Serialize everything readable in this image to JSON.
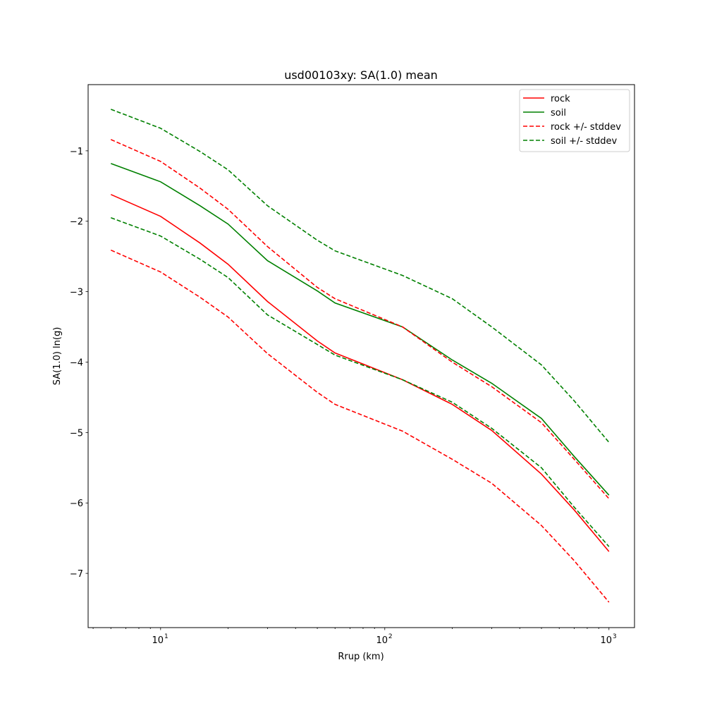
{
  "chart_data": {
    "type": "line",
    "title": "usd00103xy: SA(1.0) mean",
    "xlabel": "Rrup (km)",
    "ylabel": "SA(1.0) ln(g)",
    "xscale": "log",
    "xlim": [
      4.75,
      1300
    ],
    "ylim": [
      -7.77,
      -0.06
    ],
    "xticks": [
      {
        "value": 10,
        "base": "10",
        "exp": "1"
      },
      {
        "value": 100,
        "base": "10",
        "exp": "2"
      },
      {
        "value": 1000,
        "base": "10",
        "exp": "3"
      }
    ],
    "yticks": [
      {
        "value": -1,
        "label": "−1"
      },
      {
        "value": -2,
        "label": "−2"
      },
      {
        "value": -3,
        "label": "−3"
      },
      {
        "value": -4,
        "label": "−4"
      },
      {
        "value": -5,
        "label": "−5"
      },
      {
        "value": -6,
        "label": "−6"
      },
      {
        "value": -7,
        "label": "−7"
      }
    ],
    "grid": false,
    "legend_position": "top-right",
    "x": [
      6,
      10,
      15,
      20,
      30,
      50,
      60,
      120,
      200,
      300,
      500,
      700,
      1000
    ],
    "series": [
      {
        "name": "rock",
        "color": "#ff0000",
        "style": "solid",
        "legend": true,
        "values": [
          -1.62,
          -1.93,
          -2.31,
          -2.61,
          -3.14,
          -3.7,
          -3.87,
          -4.25,
          -4.6,
          -4.97,
          -5.59,
          -6.1,
          -6.69
        ]
      },
      {
        "name": "soil",
        "color": "#008000",
        "style": "solid",
        "legend": true,
        "values": [
          -1.18,
          -1.44,
          -1.78,
          -2.04,
          -2.56,
          -2.99,
          -3.16,
          -3.5,
          -3.97,
          -4.3,
          -4.8,
          -5.34,
          -5.89
        ]
      },
      {
        "name": "rock +/- stddev",
        "color": "#ff0000",
        "style": "dashed",
        "legend": true,
        "values": [
          -0.84,
          -1.15,
          -1.53,
          -1.83,
          -2.36,
          -2.94,
          -3.1,
          -3.5,
          -4.0,
          -4.35,
          -4.86,
          -5.38,
          -5.94
        ]
      },
      {
        "name": "rock +/- stddev",
        "color": "#ff0000",
        "style": "dashed",
        "legend": false,
        "values": [
          -2.41,
          -2.72,
          -3.08,
          -3.36,
          -3.88,
          -4.43,
          -4.6,
          -4.98,
          -5.38,
          -5.72,
          -6.32,
          -6.82,
          -7.41
        ]
      },
      {
        "name": "soil +/- stddev",
        "color": "#008000",
        "style": "dashed",
        "legend": true,
        "values": [
          -0.41,
          -0.68,
          -1.01,
          -1.27,
          -1.78,
          -2.27,
          -2.42,
          -2.77,
          -3.1,
          -3.5,
          -4.04,
          -4.55,
          -5.14
        ]
      },
      {
        "name": "soil +/- stddev",
        "color": "#008000",
        "style": "dashed",
        "legend": false,
        "values": [
          -1.95,
          -2.21,
          -2.54,
          -2.8,
          -3.33,
          -3.75,
          -3.9,
          -4.25,
          -4.57,
          -4.94,
          -5.5,
          -6.06,
          -6.62
        ]
      }
    ]
  }
}
